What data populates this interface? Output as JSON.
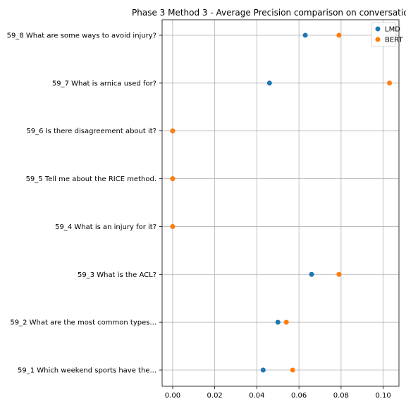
{
  "chart_data": {
    "type": "scatter",
    "title": "Phase 3 Method 3 - Average Precision comparison on conversatio",
    "categories": [
      "59_1 Which weekend sports have the...",
      "59_2 What are the most common types...",
      "59_3 What is the ACL?",
      "59_4 What is an injury for it?",
      "59_5 Tell me about the RICE method.",
      "59_6 Is there disagreement about it?",
      "59_7 What is arnica used for?",
      "59_8 What are some ways to avoid injury?"
    ],
    "series": [
      {
        "name": "LMD",
        "color": "#1f77b4",
        "values": [
          0.043,
          0.05,
          0.066,
          0.0,
          0.0,
          0.0,
          0.046,
          0.063
        ]
      },
      {
        "name": "BERT",
        "color": "#ff7f0e",
        "values": [
          0.057,
          0.054,
          0.079,
          0.0,
          0.0,
          0.0,
          0.103,
          0.079
        ]
      }
    ],
    "xticks": [
      "0.00",
      "0.02",
      "0.04",
      "0.06",
      "0.08",
      "0.10"
    ],
    "xlim": [
      -0.005,
      0.1075
    ],
    "grid": true,
    "legend_position": "top-right"
  }
}
